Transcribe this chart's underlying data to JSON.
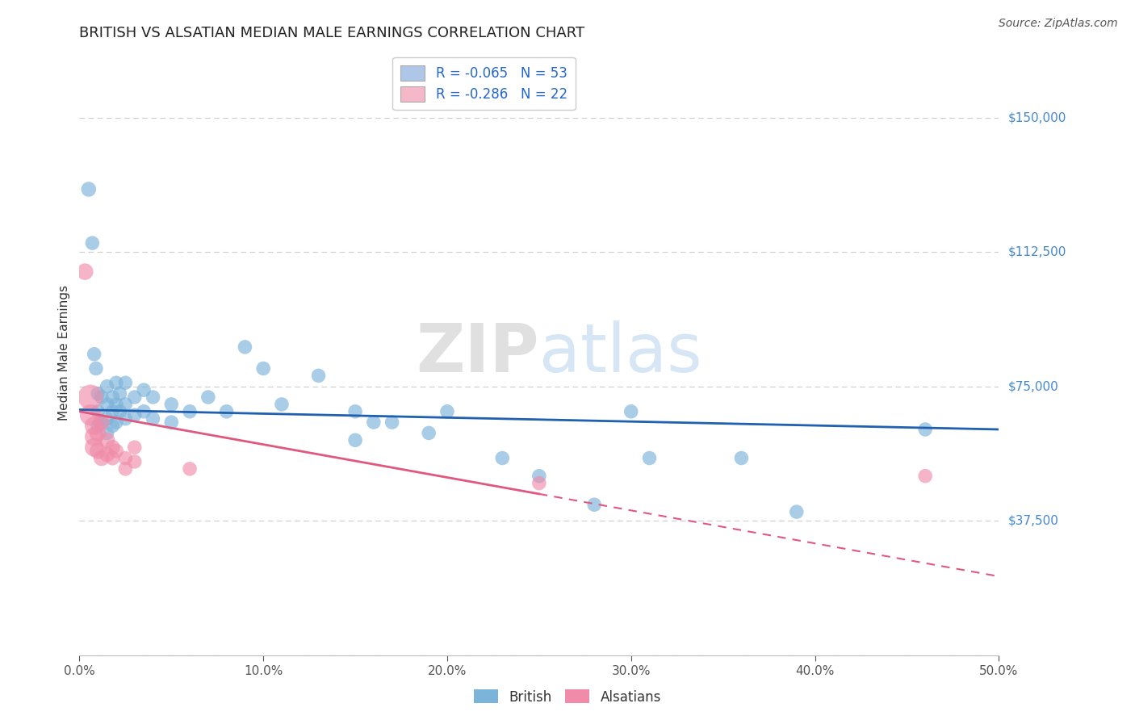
{
  "title": "BRITISH VS ALSATIAN MEDIAN MALE EARNINGS CORRELATION CHART",
  "source": "Source: ZipAtlas.com",
  "ylabel": "Median Male Earnings",
  "xlim": [
    0.0,
    0.5
  ],
  "ylim": [
    0,
    168750
  ],
  "yticks": [
    0,
    37500,
    75000,
    112500,
    150000
  ],
  "ytick_labels": [
    "",
    "$37,500",
    "$75,000",
    "$112,500",
    "$150,000"
  ],
  "xticks": [
    0.0,
    0.1,
    0.2,
    0.3,
    0.4,
    0.5
  ],
  "xtick_labels": [
    "0.0%",
    "10.0%",
    "20.0%",
    "30.0%",
    "40.0%",
    "50.0%"
  ],
  "legend_entries": [
    {
      "label": "R = -0.065   N = 53",
      "color": "#aec6e8"
    },
    {
      "label": "R = -0.286   N = 22",
      "color": "#f4b8c8"
    }
  ],
  "british_scatter": [
    [
      0.005,
      130000
    ],
    [
      0.007,
      115000
    ],
    [
      0.008,
      84000
    ],
    [
      0.009,
      80000
    ],
    [
      0.01,
      73000
    ],
    [
      0.01,
      68000
    ],
    [
      0.01,
      64000
    ],
    [
      0.012,
      72000
    ],
    [
      0.012,
      65000
    ],
    [
      0.015,
      75000
    ],
    [
      0.015,
      70000
    ],
    [
      0.015,
      66000
    ],
    [
      0.015,
      62000
    ],
    [
      0.018,
      72000
    ],
    [
      0.018,
      68000
    ],
    [
      0.018,
      64000
    ],
    [
      0.02,
      76000
    ],
    [
      0.02,
      70000
    ],
    [
      0.02,
      65000
    ],
    [
      0.022,
      73000
    ],
    [
      0.022,
      68000
    ],
    [
      0.025,
      76000
    ],
    [
      0.025,
      70000
    ],
    [
      0.025,
      66000
    ],
    [
      0.03,
      72000
    ],
    [
      0.03,
      67000
    ],
    [
      0.035,
      74000
    ],
    [
      0.035,
      68000
    ],
    [
      0.04,
      72000
    ],
    [
      0.04,
      66000
    ],
    [
      0.05,
      70000
    ],
    [
      0.05,
      65000
    ],
    [
      0.06,
      68000
    ],
    [
      0.07,
      72000
    ],
    [
      0.08,
      68000
    ],
    [
      0.09,
      86000
    ],
    [
      0.1,
      80000
    ],
    [
      0.11,
      70000
    ],
    [
      0.13,
      78000
    ],
    [
      0.15,
      68000
    ],
    [
      0.15,
      60000
    ],
    [
      0.16,
      65000
    ],
    [
      0.17,
      65000
    ],
    [
      0.19,
      62000
    ],
    [
      0.2,
      68000
    ],
    [
      0.23,
      55000
    ],
    [
      0.25,
      50000
    ],
    [
      0.28,
      42000
    ],
    [
      0.3,
      68000
    ],
    [
      0.31,
      55000
    ],
    [
      0.36,
      55000
    ],
    [
      0.39,
      40000
    ],
    [
      0.46,
      63000
    ]
  ],
  "british_sizes": [
    180,
    160,
    160,
    160,
    160,
    160,
    160,
    160,
    160,
    160,
    160,
    160,
    160,
    160,
    160,
    160,
    160,
    160,
    160,
    160,
    160,
    160,
    160,
    160,
    160,
    160,
    160,
    160,
    160,
    160,
    160,
    160,
    160,
    160,
    160,
    160,
    160,
    160,
    160,
    160,
    160,
    160,
    160,
    160,
    160,
    160,
    160,
    160,
    160,
    160,
    160,
    160,
    160
  ],
  "british_line": {
    "x0": 0.0,
    "y0": 68500,
    "x1": 0.5,
    "y1": 63000
  },
  "alsatian_scatter": [
    [
      0.003,
      107000
    ],
    [
      0.006,
      72000
    ],
    [
      0.006,
      67000
    ],
    [
      0.008,
      64000
    ],
    [
      0.008,
      61000
    ],
    [
      0.008,
      58000
    ],
    [
      0.01,
      62000
    ],
    [
      0.01,
      57000
    ],
    [
      0.012,
      65000
    ],
    [
      0.012,
      55000
    ],
    [
      0.015,
      60000
    ],
    [
      0.015,
      56000
    ],
    [
      0.018,
      58000
    ],
    [
      0.018,
      55000
    ],
    [
      0.02,
      57000
    ],
    [
      0.025,
      55000
    ],
    [
      0.025,
      52000
    ],
    [
      0.03,
      58000
    ],
    [
      0.03,
      54000
    ],
    [
      0.06,
      52000
    ],
    [
      0.25,
      48000
    ],
    [
      0.46,
      50000
    ]
  ],
  "alsatian_sizes": [
    220,
    500,
    360,
    280,
    280,
    280,
    230,
    210,
    210,
    200,
    200,
    190,
    180,
    170,
    170,
    160,
    160,
    160,
    160,
    160,
    160,
    160
  ],
  "alsatian_line_solid": {
    "x0": 0.0,
    "y0": 68000,
    "x1": 0.25,
    "y1": 45000
  },
  "alsatian_line_dash": {
    "x0": 0.25,
    "y0": 45000,
    "x1": 0.5,
    "y1": 22000
  },
  "british_color": "#7bb3d9",
  "alsatian_color": "#f08caa",
  "british_line_color": "#2060b0",
  "alsatian_line_color": "#e05880",
  "grid_color": "#cccccc",
  "background_color": "#ffffff",
  "title_fontsize": 13,
  "axis_label_fontsize": 11,
  "tick_fontsize": 11,
  "right_label_color": "#4488cc",
  "watermark_zip_color": "#cccccc",
  "watermark_atlas_color": "#a8c8e8"
}
